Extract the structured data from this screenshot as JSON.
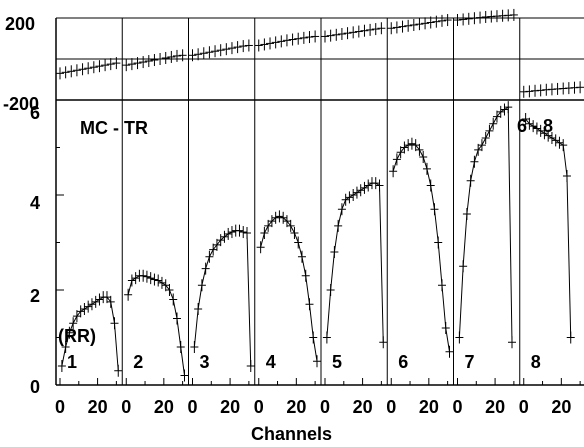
{
  "chart_data": [
    {
      "type": "scatter",
      "title": "",
      "xlabel": "",
      "ylabel": "",
      "ylim": [
        -200,
        200
      ],
      "yticks": [
        "200",
        "-200"
      ],
      "grid": false,
      "panels": [
        {
          "x": [
            0,
            3,
            6,
            9,
            12,
            15,
            18,
            21,
            24,
            27,
            30
          ],
          "y": [
            -70,
            -65,
            -60,
            -55,
            -50,
            -45,
            -40,
            -35,
            -30,
            -25,
            -20
          ]
        },
        {
          "x": [
            0,
            3,
            6,
            9,
            12,
            15,
            18,
            21,
            24,
            27,
            30
          ],
          "y": [
            -30,
            -25,
            -20,
            -15,
            -10,
            -5,
            0,
            5,
            10,
            15,
            18
          ]
        },
        {
          "x": [
            0,
            3,
            6,
            9,
            12,
            15,
            18,
            21,
            24,
            27,
            30
          ],
          "y": [
            18,
            23,
            28,
            33,
            38,
            43,
            48,
            53,
            58,
            63,
            66
          ]
        },
        {
          "x": [
            0,
            3,
            6,
            9,
            12,
            15,
            18,
            21,
            24,
            27,
            30
          ],
          "y": [
            66,
            71,
            76,
            81,
            86,
            91,
            95,
            99,
            103,
            107,
            110
          ]
        },
        {
          "x": [
            0,
            3,
            6,
            9,
            12,
            15,
            18,
            21,
            24,
            27,
            30
          ],
          "y": [
            110,
            114,
            118,
            122,
            126,
            130,
            134,
            138,
            142,
            146,
            150
          ]
        },
        {
          "x": [
            0,
            3,
            6,
            9,
            12,
            15,
            18,
            21,
            24,
            27,
            30
          ],
          "y": [
            150,
            154,
            158,
            162,
            166,
            170,
            174,
            178,
            182,
            186,
            190
          ]
        },
        {
          "x": [
            0,
            3,
            6,
            9,
            12,
            15,
            18,
            21,
            24,
            27,
            30
          ],
          "y": [
            190,
            193,
            196,
            199,
            202,
            205,
            207,
            209,
            211,
            213,
            215
          ]
        },
        {
          "x": [
            0,
            3,
            6,
            9,
            12,
            15,
            18,
            21,
            24,
            27,
            30
          ],
          "y": [
            -160,
            -158,
            -155,
            -153,
            -150,
            -148,
            -146,
            -144,
            -142,
            -140,
            -138
          ]
        }
      ]
    },
    {
      "type": "scatter",
      "title": "MC - TR",
      "xlabel": "Channels",
      "ylabel": "",
      "ylim": [
        0,
        6
      ],
      "yticks": [
        "0",
        "2",
        "4",
        "6"
      ],
      "xticks": [
        "0",
        "20"
      ],
      "grid": false,
      "annotations": [
        "(RR)",
        "6 - 8"
      ],
      "panels": [
        {
          "label": "1",
          "x": [
            1,
            3,
            5,
            7,
            9,
            11,
            13,
            15,
            17,
            19,
            21,
            23,
            25,
            27,
            29,
            31
          ],
          "y": [
            0.4,
            0.8,
            1.1,
            1.3,
            1.45,
            1.55,
            1.6,
            1.65,
            1.7,
            1.75,
            1.8,
            1.85,
            1.85,
            1.75,
            1.3,
            0.3
          ]
        },
        {
          "label": "2",
          "x": [
            1,
            3,
            5,
            7,
            9,
            11,
            13,
            15,
            17,
            19,
            21,
            23,
            25,
            27,
            29,
            31
          ],
          "y": [
            1.9,
            2.2,
            2.25,
            2.3,
            2.3,
            2.28,
            2.25,
            2.22,
            2.2,
            2.15,
            2.1,
            2.0,
            1.8,
            1.4,
            0.8,
            0.2
          ]
        },
        {
          "label": "3",
          "x": [
            1,
            3,
            5,
            7,
            9,
            11,
            13,
            15,
            17,
            19,
            21,
            23,
            25,
            27,
            29,
            31
          ],
          "y": [
            0.8,
            1.6,
            2.1,
            2.45,
            2.7,
            2.85,
            2.95,
            3.05,
            3.12,
            3.18,
            3.22,
            3.25,
            3.25,
            3.22,
            3.2,
            0.4
          ]
        },
        {
          "label": "4",
          "x": [
            1,
            3,
            5,
            7,
            9,
            11,
            13,
            15,
            17,
            19,
            21,
            23,
            25,
            27,
            29,
            31
          ],
          "y": [
            2.9,
            3.2,
            3.35,
            3.45,
            3.52,
            3.55,
            3.52,
            3.45,
            3.35,
            3.2,
            3.0,
            2.7,
            2.3,
            1.7,
            1.0,
            0.5
          ]
        },
        {
          "label": "5",
          "x": [
            1,
            3,
            5,
            7,
            9,
            11,
            13,
            15,
            17,
            19,
            21,
            23,
            25,
            27,
            29,
            31
          ],
          "y": [
            1.0,
            2.0,
            2.8,
            3.35,
            3.7,
            3.9,
            3.95,
            4.0,
            4.05,
            4.1,
            4.15,
            4.2,
            4.25,
            4.25,
            4.2,
            0.9
          ]
        },
        {
          "label": "6",
          "x": [
            1,
            3,
            5,
            7,
            9,
            11,
            13,
            15,
            17,
            19,
            21,
            23,
            25,
            27,
            29,
            31
          ],
          "y": [
            4.5,
            4.75,
            4.9,
            5.0,
            5.05,
            5.08,
            5.05,
            4.95,
            4.8,
            4.55,
            4.2,
            3.7,
            3.0,
            2.1,
            1.2,
            0.7
          ]
        },
        {
          "label": "7",
          "x": [
            1,
            3,
            5,
            7,
            9,
            11,
            13,
            15,
            17,
            19,
            21,
            23,
            25,
            27,
            29
          ],
          "y": [
            1.0,
            2.5,
            3.6,
            4.3,
            4.7,
            4.95,
            5.05,
            5.2,
            5.35,
            5.5,
            5.65,
            5.75,
            5.8,
            5.85,
            0.9
          ]
        },
        {
          "label": "8",
          "x": [
            1,
            3,
            5,
            7,
            9,
            11,
            13,
            15,
            17,
            19,
            21,
            23,
            25
          ],
          "y": [
            5.6,
            5.5,
            5.45,
            5.4,
            5.35,
            5.3,
            5.25,
            5.2,
            5.15,
            5.1,
            5.05,
            4.4,
            1.0
          ]
        }
      ]
    }
  ]
}
